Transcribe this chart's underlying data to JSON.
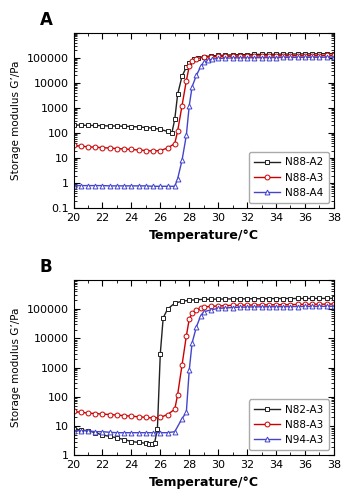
{
  "panel_A": {
    "label": "A",
    "series": [
      {
        "name": "N88-A2",
        "color": "#222222",
        "marker": "s",
        "marker_fill": "white",
        "marker_edge": "#222222",
        "temps": [
          20,
          20.5,
          21,
          21.5,
          22,
          22.5,
          23,
          23.5,
          24,
          24.5,
          25,
          25.5,
          26,
          26.5,
          26.8,
          27.0,
          27.2,
          27.5,
          27.8,
          28.0,
          28.3,
          28.6,
          29.0,
          29.5,
          30,
          30.5,
          31,
          31.5,
          32,
          32.5,
          33,
          33.5,
          34,
          34.5,
          35,
          35.5,
          36,
          36.5,
          37,
          37.5,
          38
        ],
        "values": [
          210,
          205,
          200,
          200,
          195,
          190,
          190,
          185,
          180,
          175,
          165,
          155,
          140,
          115,
          100,
          350,
          3500,
          18000,
          42000,
          62000,
          85000,
          100000,
          110000,
          118000,
          123000,
          127000,
          130000,
          132000,
          133500,
          135000,
          136000,
          137000,
          138000,
          139000,
          140000,
          141000,
          142000,
          143000,
          144000,
          145000,
          146000
        ]
      },
      {
        "name": "N88-A3",
        "color": "#cc0000",
        "marker": "o",
        "marker_fill": "white",
        "marker_edge": "#cc0000",
        "temps": [
          20,
          20.5,
          21,
          21.5,
          22,
          22.5,
          23,
          23.5,
          24,
          24.5,
          25,
          25.5,
          26,
          26.5,
          27.0,
          27.2,
          27.5,
          27.8,
          28.0,
          28.2,
          28.5,
          29,
          29.5,
          30,
          30.5,
          31,
          31.5,
          32,
          32.5,
          33,
          33.5,
          34,
          34.5,
          35,
          35.5,
          36,
          36.5,
          37,
          37.5,
          38
        ],
        "values": [
          32,
          30,
          28,
          27,
          26,
          25,
          24,
          23,
          22,
          21,
          20,
          19,
          20,
          25,
          38,
          120,
          1200,
          12000,
          45000,
          72000,
          92000,
          104000,
          108000,
          112000,
          114000,
          115000,
          116000,
          117000,
          117500,
          118000,
          118500,
          119000,
          119500,
          120000,
          120500,
          121000,
          121500,
          122000,
          122500,
          123000
        ]
      },
      {
        "name": "N88-A4",
        "color": "#4444cc",
        "marker": "^",
        "marker_fill": "white",
        "marker_edge": "#4444cc",
        "temps": [
          20,
          20.5,
          21,
          21.5,
          22,
          22.5,
          23,
          23.5,
          24,
          24.5,
          25,
          25.5,
          26,
          26.5,
          27.0,
          27.2,
          27.5,
          27.8,
          28.0,
          28.2,
          28.5,
          28.8,
          29.0,
          29.3,
          29.6,
          30,
          30.5,
          31,
          31.5,
          32,
          32.5,
          33,
          33.5,
          34,
          34.5,
          35,
          35.5,
          36,
          36.5,
          37,
          37.5,
          38
        ],
        "values": [
          0.8,
          0.8,
          0.8,
          0.8,
          0.8,
          0.78,
          0.78,
          0.78,
          0.78,
          0.78,
          0.78,
          0.75,
          0.75,
          0.75,
          0.75,
          1.5,
          8,
          80,
          1200,
          7000,
          20000,
          45000,
          65000,
          78000,
          88000,
          93000,
          96000,
          98000,
          99000,
          99500,
          100000,
          100500,
          101000,
          101500,
          102000,
          102500,
          103000,
          103500,
          104000,
          104500,
          105000,
          105500
        ]
      }
    ],
    "ylabel": "Storage modulus G’/Pa",
    "xlabel": "Temperature/°C",
    "xlim": [
      20,
      38
    ],
    "ylim": [
      0.1,
      1000000
    ],
    "ylim_bottom": 0.1,
    "yticks": [
      0.1,
      1,
      10,
      100,
      1000,
      10000,
      100000,
      1000000
    ],
    "ytick_labels": [
      "0.1",
      "1",
      "10",
      "100",
      "1000",
      "10000",
      "100000",
      ""
    ],
    "xticks": [
      20,
      22,
      24,
      26,
      28,
      30,
      32,
      34,
      36,
      38
    ]
  },
  "panel_B": {
    "label": "B",
    "series": [
      {
        "name": "N82-A3",
        "color": "#222222",
        "marker": "s",
        "marker_fill": "white",
        "marker_edge": "#222222",
        "temps": [
          20,
          20.5,
          21,
          21.5,
          22,
          22.5,
          23,
          23.5,
          24,
          24.5,
          25,
          25.2,
          25.4,
          25.6,
          25.8,
          26.0,
          26.2,
          26.5,
          27.0,
          27.5,
          28.0,
          28.5,
          29.0,
          29.5,
          30,
          30.5,
          31,
          31.5,
          32,
          32.5,
          33,
          33.5,
          34,
          34.5,
          35,
          35.5,
          36,
          36.5,
          37,
          37.5,
          38
        ],
        "values": [
          8,
          7.5,
          7,
          6,
          5,
          4.5,
          4,
          3.5,
          3,
          2.8,
          2.6,
          2.5,
          2.5,
          2.6,
          8,
          3000,
          50000,
          100000,
          160000,
          185000,
          200000,
          210000,
          215000,
          218000,
          220000,
          222000,
          223000,
          224000,
          225000,
          226000,
          227000,
          228000,
          229000,
          229500,
          230000,
          230500,
          231000,
          231500,
          232000,
          232500,
          233000
        ]
      },
      {
        "name": "N88-A3",
        "color": "#cc0000",
        "marker": "o",
        "marker_fill": "white",
        "marker_edge": "#cc0000",
        "temps": [
          20,
          20.5,
          21,
          21.5,
          22,
          22.5,
          23,
          23.5,
          24,
          24.5,
          25,
          25.5,
          26,
          26.5,
          27.0,
          27.2,
          27.5,
          27.8,
          28.0,
          28.2,
          28.5,
          28.8,
          29.0,
          29.5,
          30,
          30.5,
          31,
          31.5,
          32,
          32.5,
          33,
          33.5,
          34,
          34.5,
          35,
          35.5,
          36,
          36.5,
          37,
          37.5,
          38
        ],
        "values": [
          32,
          30,
          28,
          27,
          26,
          25,
          24,
          23,
          22,
          21,
          20,
          19,
          20,
          25,
          38,
          120,
          1200,
          12000,
          45000,
          72000,
          92000,
          108000,
          118000,
          124000,
          128000,
          132000,
          134000,
          136000,
          137000,
          138000,
          139000,
          140000,
          141000,
          142000,
          143000,
          144000,
          145000,
          146000,
          147000,
          148000,
          149000
        ]
      },
      {
        "name": "N94-A3",
        "color": "#4444cc",
        "marker": "^",
        "marker_fill": "white",
        "marker_edge": "#4444cc",
        "temps": [
          20,
          20.5,
          21,
          21.5,
          22,
          22.5,
          23,
          23.5,
          24,
          24.5,
          25,
          25.5,
          26,
          26.5,
          27.0,
          27.5,
          27.8,
          28.0,
          28.2,
          28.5,
          28.8,
          29.0,
          29.5,
          30,
          30.5,
          31,
          31.5,
          32,
          32.5,
          33,
          33.5,
          34,
          34.5,
          35,
          35.5,
          36,
          36.5,
          37,
          37.5,
          38
        ],
        "values": [
          7,
          7,
          7,
          6.5,
          6.5,
          6.2,
          6,
          6,
          6,
          6,
          6,
          6,
          6,
          6,
          6.5,
          18,
          30,
          800,
          7000,
          25000,
          60000,
          80000,
          95000,
          105000,
          110000,
          113000,
          116000,
          118000,
          119000,
          120000,
          120500,
          121000,
          121500,
          122000,
          122500,
          123000,
          123500,
          124000,
          124500,
          125000
        ]
      }
    ],
    "ylabel": "Storage modulus G’/Pa",
    "xlabel": "Temperature/°C",
    "xlim": [
      20,
      38
    ],
    "ylim": [
      1,
      1000000
    ],
    "ylim_bottom": 1,
    "yticks": [
      1,
      10,
      100,
      1000,
      10000,
      100000,
      1000000
    ],
    "ytick_labels": [
      "1",
      "10",
      "100",
      "1000",
      "10000",
      "100000",
      ""
    ],
    "xticks": [
      20,
      22,
      24,
      26,
      28,
      30,
      32,
      34,
      36,
      38
    ]
  },
  "figure_bgcolor": "#ffffff",
  "marker_size": 3.5,
  "linewidth": 1.0
}
